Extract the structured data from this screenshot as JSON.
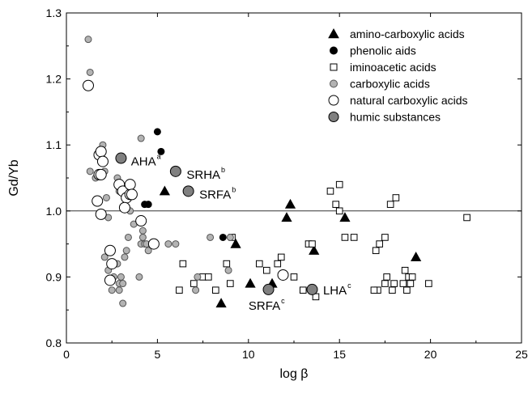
{
  "chart_data": {
    "type": "scatter",
    "xlabel": "log β",
    "ylabel": "Gd/Yb",
    "xlim": [
      0,
      25
    ],
    "ylim": [
      0.8,
      1.3
    ],
    "xticks": [
      "0",
      "5",
      "10",
      "15",
      "20",
      "25"
    ],
    "yticks": [
      "0.8",
      "0.9",
      "1.0",
      "1.1",
      "1.2",
      "1.3"
    ],
    "x_tick_values": [
      0,
      5,
      10,
      15,
      20,
      25
    ],
    "y_tick_values": [
      0.8,
      0.9,
      1.0,
      1.1,
      1.2,
      1.3
    ],
    "reference_line_y": 1.0,
    "grid": false,
    "legend_position": "top-right",
    "series": [
      {
        "name": "amino-carboxylic acids",
        "marker": "triangle",
        "fill": "#000000",
        "stroke": "#000000",
        "points": [
          [
            5.4,
            1.03
          ],
          [
            8.5,
            0.86
          ],
          [
            9.3,
            0.95
          ],
          [
            10.1,
            0.89
          ],
          [
            11.3,
            0.89
          ],
          [
            12.1,
            0.99
          ],
          [
            12.3,
            1.01
          ],
          [
            13.6,
            0.94
          ],
          [
            15.3,
            0.99
          ],
          [
            19.2,
            0.93
          ]
        ]
      },
      {
        "name": "phenolic aids",
        "marker": "circle",
        "fill": "#000000",
        "stroke": "#000000",
        "points": [
          [
            5.0,
            1.12
          ],
          [
            5.2,
            1.09
          ],
          [
            4.3,
            1.01
          ],
          [
            4.5,
            1.01
          ],
          [
            8.6,
            0.96
          ]
        ]
      },
      {
        "name": "iminoacetic acids",
        "marker": "square",
        "fill": "#ffffff",
        "stroke": "#000000",
        "points": [
          [
            6.2,
            0.88
          ],
          [
            6.4,
            0.92
          ],
          [
            7.0,
            0.89
          ],
          [
            7.5,
            0.9
          ],
          [
            7.8,
            0.9
          ],
          [
            8.2,
            0.88
          ],
          [
            8.8,
            0.92
          ],
          [
            9.0,
            0.89
          ],
          [
            9.1,
            0.96
          ],
          [
            10.6,
            0.92
          ],
          [
            11.0,
            0.91
          ],
          [
            11.6,
            0.92
          ],
          [
            11.8,
            0.93
          ],
          [
            12.5,
            0.9
          ],
          [
            13.0,
            0.88
          ],
          [
            13.3,
            0.95
          ],
          [
            13.5,
            0.95
          ],
          [
            13.7,
            0.87
          ],
          [
            14.5,
            1.03
          ],
          [
            14.8,
            1.01
          ],
          [
            15.0,
            1.04
          ],
          [
            15.3,
            0.96
          ],
          [
            15.8,
            0.96
          ],
          [
            17.0,
            0.94
          ],
          [
            17.2,
            0.95
          ],
          [
            17.5,
            0.96
          ],
          [
            17.6,
            0.9
          ],
          [
            17.8,
            1.01
          ],
          [
            18.1,
            1.02
          ],
          [
            18.0,
            0.89
          ],
          [
            18.5,
            0.89
          ],
          [
            18.6,
            0.91
          ],
          [
            18.8,
            0.9
          ],
          [
            18.9,
            0.89
          ],
          [
            19.9,
            0.89
          ],
          [
            17.1,
            0.88
          ],
          [
            16.9,
            0.88
          ],
          [
            18.7,
            0.88
          ],
          [
            17.9,
            0.88
          ],
          [
            22.0,
            0.99
          ],
          [
            15.0,
            1.0
          ],
          [
            17.5,
            0.89
          ],
          [
            19.0,
            0.9
          ]
        ]
      },
      {
        "name": "carboxylic acids",
        "marker": "circle",
        "fill": "#b3b3b3",
        "stroke": "#555555",
        "points": [
          [
            1.2,
            1.26
          ],
          [
            1.3,
            1.21
          ],
          [
            1.3,
            1.06
          ],
          [
            1.6,
            1.05
          ],
          [
            2.0,
            1.1
          ],
          [
            2.1,
            1.06
          ],
          [
            2.2,
            1.02
          ],
          [
            2.3,
            0.99
          ],
          [
            2.1,
            0.93
          ],
          [
            2.3,
            0.91
          ],
          [
            2.5,
            0.88
          ],
          [
            2.6,
            0.9
          ],
          [
            2.8,
            0.92
          ],
          [
            2.9,
            0.88
          ],
          [
            2.9,
            0.89
          ],
          [
            3.0,
            0.9
          ],
          [
            3.1,
            0.89
          ],
          [
            3.1,
            0.86
          ],
          [
            2.8,
            1.05
          ],
          [
            3.0,
            1.04
          ],
          [
            2.9,
            1.03
          ],
          [
            3.2,
            1.02
          ],
          [
            3.3,
            0.94
          ],
          [
            3.4,
            0.96
          ],
          [
            3.5,
            1.0
          ],
          [
            3.7,
            0.98
          ],
          [
            3.2,
            0.93
          ],
          [
            4.0,
            0.9
          ],
          [
            4.1,
            1.11
          ],
          [
            4.1,
            0.95
          ],
          [
            4.2,
            0.97
          ],
          [
            4.3,
            0.95
          ],
          [
            4.4,
            0.95
          ],
          [
            4.5,
            0.94
          ],
          [
            4.8,
            0.95
          ],
          [
            4.2,
            0.96
          ],
          [
            5.6,
            0.95
          ],
          [
            6.0,
            0.95
          ],
          [
            7.1,
            0.88
          ],
          [
            7.2,
            0.9
          ],
          [
            7.9,
            0.96
          ],
          [
            8.9,
            0.91
          ],
          [
            9.0,
            0.96
          ]
        ]
      },
      {
        "name": "natural carboxylic acids",
        "marker": "circle",
        "fill": "#ffffff",
        "stroke": "#000000",
        "points": [
          [
            1.2,
            1.19
          ],
          [
            1.8,
            1.085
          ],
          [
            1.9,
            1.09
          ],
          [
            2.0,
            1.075
          ],
          [
            1.8,
            1.055
          ],
          [
            1.9,
            1.055
          ],
          [
            1.7,
            1.015
          ],
          [
            1.9,
            0.995
          ],
          [
            2.4,
            0.94
          ],
          [
            2.5,
            0.92
          ],
          [
            2.4,
            0.895
          ],
          [
            2.9,
            1.04
          ],
          [
            3.1,
            1.03
          ],
          [
            3.3,
            1.02
          ],
          [
            3.2,
            1.005
          ],
          [
            3.5,
            1.025
          ],
          [
            3.5,
            1.04
          ],
          [
            3.6,
            1.025
          ],
          [
            4.1,
            0.985
          ],
          [
            4.8,
            0.95
          ],
          [
            11.9,
            0.903
          ]
        ]
      },
      {
        "name": "humic substances",
        "marker": "circle",
        "fill": "#808080",
        "stroke": "#000000",
        "points": [
          [
            3.0,
            1.08
          ],
          [
            6.0,
            1.06
          ],
          [
            6.7,
            1.03
          ],
          [
            11.1,
            0.881
          ],
          [
            13.5,
            0.881
          ]
        ]
      }
    ],
    "annotations": [
      {
        "base": "AHA",
        "sup": "a",
        "x": 3.55,
        "y": 1.08,
        "anchor": "start",
        "dy": 9
      },
      {
        "base": "SRHA",
        "sup": "b",
        "x": 6.6,
        "y": 1.06,
        "anchor": "start",
        "dy": 9
      },
      {
        "base": "SRFA",
        "sup": "b",
        "x": 7.3,
        "y": 1.03,
        "anchor": "start",
        "dy": 9
      },
      {
        "base": "SRFA",
        "sup": "c",
        "x": 11.0,
        "y": 0.881,
        "anchor": "middle",
        "dy": 25
      },
      {
        "base": "LHA",
        "sup": "c",
        "x": 14.1,
        "y": 0.881,
        "anchor": "start",
        "dy": 6
      }
    ]
  }
}
